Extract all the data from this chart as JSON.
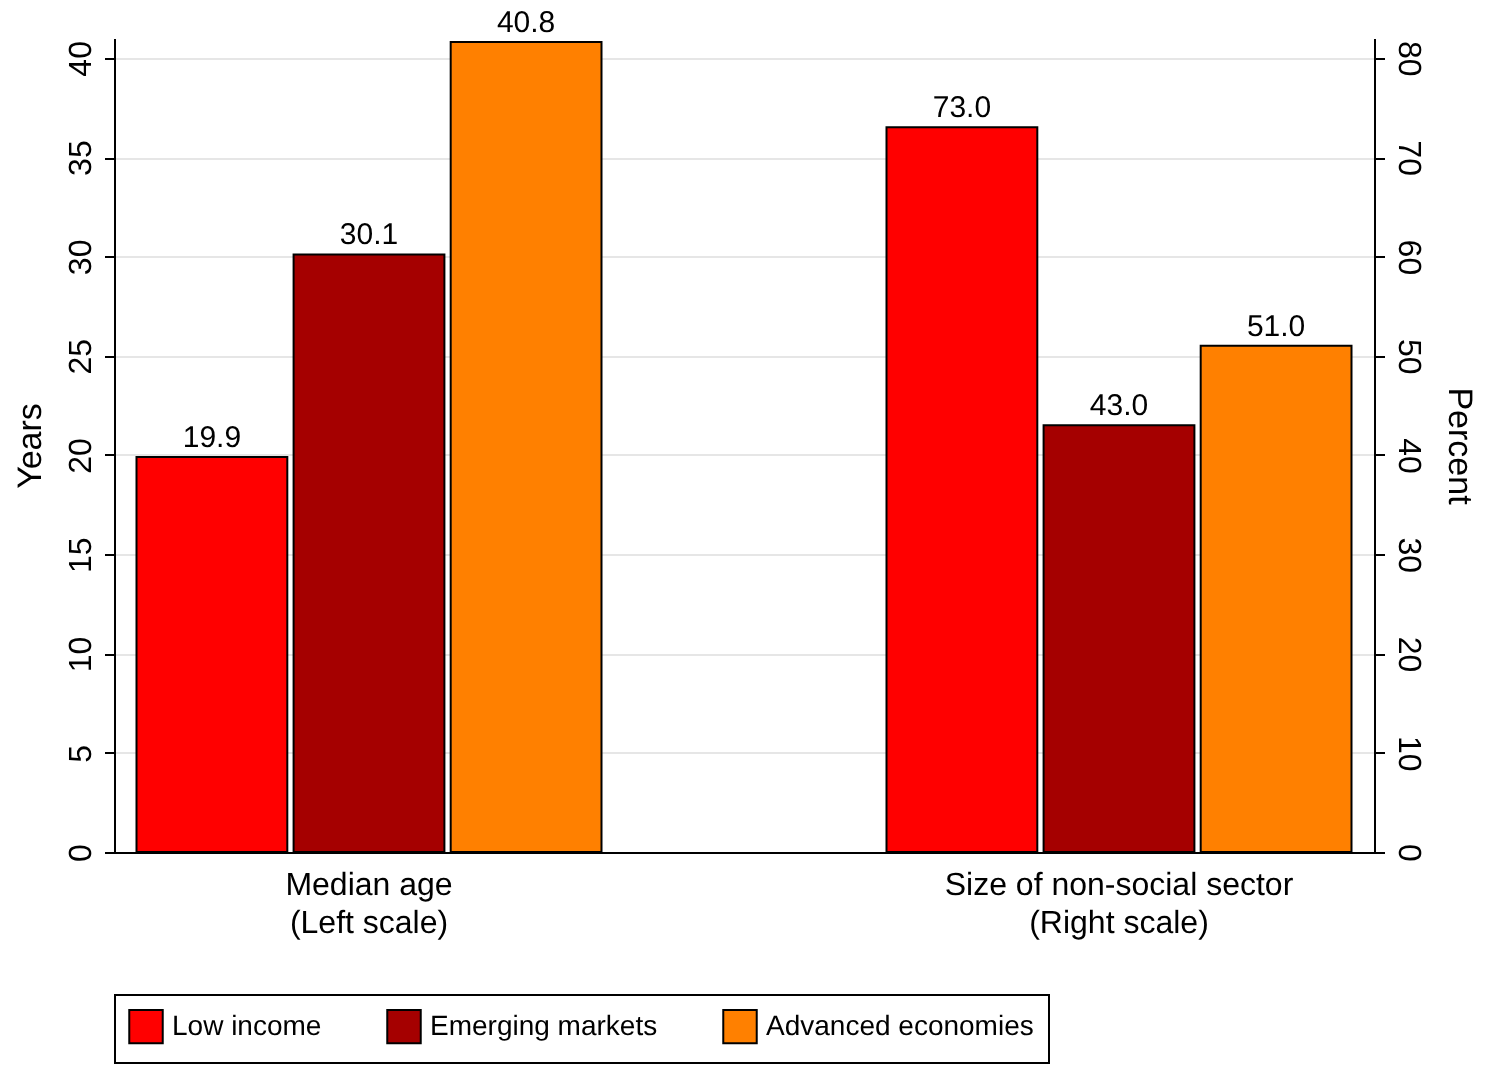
{
  "chart_data": {
    "type": "bar",
    "categories": [
      "Median age\n(Left scale)",
      "Size of non-social sector\n(Right scale)"
    ],
    "ylabel": "Years",
    "y2label": "Percent",
    "series": [
      {
        "name": "Low income",
        "color": "#ff0000",
        "values": [
          19.9,
          null
        ],
        "value_labels": [
          "19.9",
          null
        ]
      },
      {
        "name": "Emerging markets",
        "color": "#a50000",
        "values": [
          30.1,
          null
        ],
        "value_labels": [
          "30.1",
          null
        ]
      },
      {
        "name": "Advanced economies",
        "color": "#ff8000",
        "values": [
          40.8,
          null
        ],
        "value_labels": [
          "40.8",
          null
        ]
      },
      {
        "color": "#ff0000",
        "axis": "y2",
        "values": [
          null,
          73.0
        ],
        "value_labels": [
          null,
          "73.0"
        ]
      },
      {
        "color": "#a50000",
        "axis": "y2",
        "values": [
          null,
          43.0
        ],
        "value_labels": [
          null,
          "43.0"
        ]
      },
      {
        "color": "#ff8000",
        "axis": "y2",
        "values": [
          null,
          51.0
        ],
        "value_labels": [
          null,
          "51.0"
        ]
      }
    ],
    "ylim": [
      0,
      41
    ],
    "yticks": [
      0,
      5,
      10,
      15,
      20,
      25,
      30,
      35,
      40
    ],
    "y2lim": [
      0,
      82
    ],
    "y2ticks": [
      0,
      10,
      20,
      30,
      40,
      50,
      60,
      70,
      80
    ],
    "grid": "y",
    "legend": "bottom"
  }
}
